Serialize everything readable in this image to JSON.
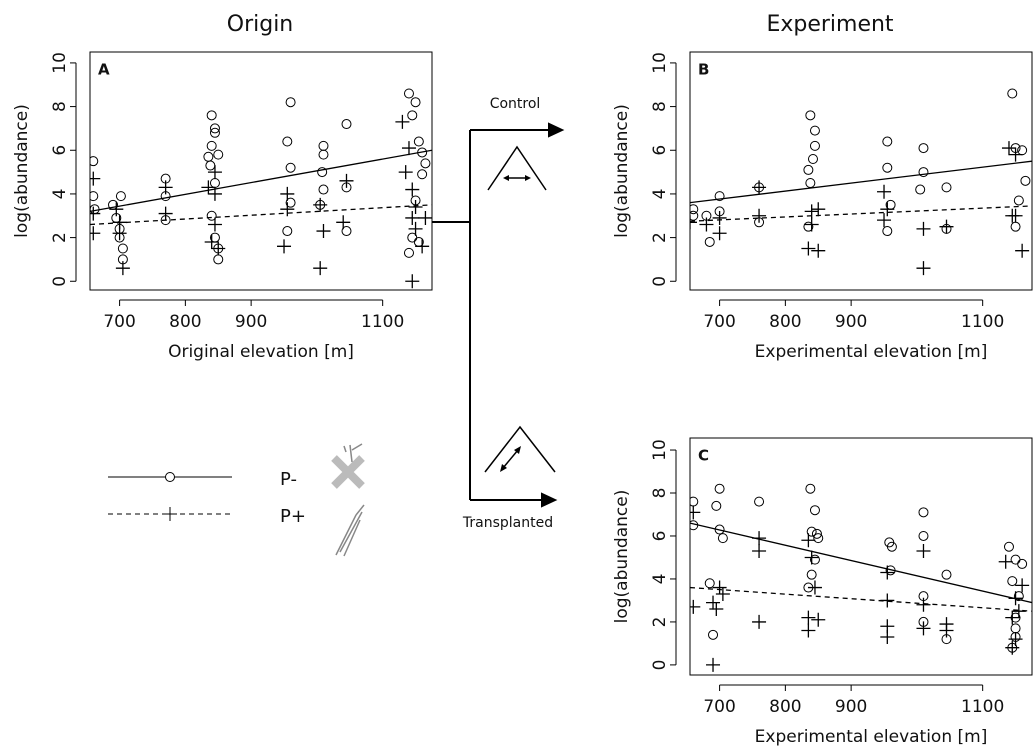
{
  "chart_data": [
    {
      "type": "scatter",
      "title": "Origin",
      "label": "A",
      "x_label": "Original elevation [m]",
      "y_label": "log(abundance)",
      "xlim": [
        655,
        1175
      ],
      "ylim": [
        -0.4,
        10.5
      ],
      "xticks": [
        700,
        800,
        900,
        1100
      ],
      "yticks": [
        0,
        2,
        4,
        6,
        8,
        10
      ],
      "series": [
        {
          "name": "P-",
          "color": "#000000",
          "marker": "circle",
          "dash": "solid",
          "x": [
            660,
            660,
            662,
            690,
            695,
            700,
            702,
            705,
            705,
            700,
            770,
            770,
            770,
            840,
            845,
            845,
            840,
            835,
            838,
            850,
            845,
            840,
            845,
            850,
            850,
            960,
            955,
            960,
            960,
            955,
            1010,
            1010,
            1008,
            1010,
            1005,
            1045,
            1045,
            1045,
            1140,
            1150,
            1145,
            1155,
            1160,
            1165,
            1160,
            1150,
            1145,
            1140,
            1155
          ],
          "values": [
            5.5,
            3.9,
            3.3,
            3.5,
            2.9,
            2.4,
            3.9,
            1.5,
            1.0,
            2.0,
            4.7,
            2.8,
            3.9,
            7.6,
            7.0,
            6.8,
            6.2,
            5.7,
            5.3,
            5.8,
            4.5,
            3.0,
            2.0,
            1.5,
            1.0,
            8.2,
            6.4,
            5.2,
            3.6,
            2.3,
            6.2,
            5.8,
            5.0,
            4.2,
            3.5,
            7.2,
            4.3,
            2.3,
            8.6,
            8.2,
            7.6,
            6.4,
            5.9,
            5.4,
            4.9,
            3.7,
            2.0,
            1.3,
            1.8
          ],
          "fit_x": [
            655,
            1175
          ],
          "fit_values": [
            3.2,
            6.0
          ]
        },
        {
          "name": "P+",
          "color": "#000000",
          "marker": "plus",
          "dash": "dashed",
          "x": [
            660,
            660,
            660,
            700,
            705,
            700,
            695,
            770,
            770,
            835,
            845,
            845,
            840,
            850,
            845,
            955,
            955,
            950,
            1005,
            1010,
            1005,
            1045,
            1040,
            1130,
            1140,
            1135,
            1145,
            1150,
            1145,
            1150,
            1145,
            1160,
            1165
          ],
          "values": [
            4.7,
            3.1,
            2.2,
            2.7,
            0.6,
            2.2,
            3.3,
            4.3,
            3.1,
            4.3,
            4.0,
            2.6,
            1.8,
            1.5,
            5.0,
            4.0,
            3.3,
            1.6,
            3.5,
            2.3,
            0.6,
            4.6,
            2.7,
            7.3,
            6.1,
            5.0,
            4.2,
            3.4,
            2.9,
            2.4,
            0.0,
            1.6,
            2.9
          ],
          "fit_x": [
            655,
            1175
          ],
          "fit_values": [
            2.6,
            3.5
          ]
        }
      ]
    },
    {
      "type": "scatter",
      "title": "Experiment",
      "label": "B",
      "x_label": "Experimental elevation  [m]",
      "y_label": "log(abundance)",
      "xlim": [
        655,
        1175
      ],
      "ylim": [
        -0.4,
        10.5
      ],
      "xticks": [
        700,
        800,
        900,
        1100
      ],
      "yticks": [
        0,
        2,
        4,
        6,
        8,
        10
      ],
      "series": [
        {
          "color": "#000000",
          "marker": "circle",
          "dash": "solid",
          "x": [
            660,
            660,
            680,
            685,
            700,
            700,
            760,
            760,
            838,
            845,
            845,
            842,
            835,
            838,
            835,
            955,
            955,
            960,
            955,
            1010,
            1010,
            1005,
            1045,
            1045,
            1145,
            1150,
            1160,
            1165,
            1155,
            1150
          ],
          "values": [
            3.3,
            3.0,
            3.0,
            1.8,
            3.9,
            3.2,
            4.3,
            2.7,
            7.6,
            6.9,
            6.2,
            5.6,
            5.1,
            4.5,
            2.5,
            6.4,
            5.2,
            3.5,
            2.3,
            6.1,
            5.0,
            4.2,
            4.3,
            2.4,
            8.6,
            6.1,
            6.0,
            4.6,
            3.7,
            2.5
          ],
          "fit_x": [
            655,
            1175
          ],
          "fit_values": [
            3.6,
            5.5
          ]
        },
        {
          "color": "#000000",
          "marker": "plus",
          "dash": "dashed",
          "x": [
            655,
            680,
            700,
            700,
            760,
            760,
            840,
            840,
            835,
            850,
            850,
            950,
            955,
            950,
            1010,
            1010,
            1045,
            1140,
            1150,
            1145,
            1160,
            1150
          ],
          "values": [
            2.7,
            2.6,
            2.9,
            2.2,
            4.3,
            3.0,
            3.2,
            2.6,
            1.5,
            1.4,
            3.3,
            4.1,
            3.3,
            2.8,
            2.4,
            0.6,
            2.5,
            6.1,
            5.8,
            3.0,
            1.4,
            3.0
          ],
          "fit_x": [
            655,
            1175
          ],
          "fit_values": [
            2.75,
            3.45
          ]
        }
      ]
    },
    {
      "type": "scatter",
      "label": "C",
      "x_label": "Experimental elevation [m]",
      "y_label": "log(abundance)",
      "xlim": [
        655,
        1175
      ],
      "ylim": [
        -0.47,
        10.56
      ],
      "xticks": [
        700,
        800,
        900,
        1100
      ],
      "yticks": [
        0,
        2,
        4,
        6,
        8,
        10
      ],
      "series": [
        {
          "color": "#000000",
          "marker": "circle",
          "dash": "solid",
          "x": [
            660,
            660,
            700,
            695,
            700,
            705,
            685,
            690,
            760,
            838,
            845,
            840,
            848,
            850,
            845,
            840,
            835,
            958,
            962,
            960,
            1010,
            1010,
            1010,
            1010,
            1045,
            1045,
            1140,
            1150,
            1160,
            1145,
            1155,
            1150,
            1150,
            1150,
            1145
          ],
          "values": [
            7.6,
            6.5,
            8.2,
            7.4,
            6.3,
            5.9,
            3.8,
            1.4,
            7.6,
            8.2,
            7.2,
            6.2,
            6.1,
            5.9,
            4.9,
            4.2,
            3.6,
            5.7,
            5.5,
            4.4,
            7.1,
            6.0,
            3.2,
            2.0,
            4.2,
            1.2,
            5.5,
            4.9,
            4.7,
            3.9,
            3.2,
            2.2,
            1.7,
            1.3,
            0.8
          ],
          "fit_x": [
            655,
            1175
          ],
          "fit_values": [
            6.6,
            2.9
          ]
        },
        {
          "color": "#000000",
          "marker": "plus",
          "dash": "dashed",
          "x": [
            660,
            660,
            690,
            700,
            705,
            695,
            690,
            760,
            760,
            760,
            835,
            840,
            845,
            835,
            835,
            850,
            955,
            955,
            955,
            955,
            1010,
            1010,
            1010,
            1045,
            1045,
            1135,
            1145,
            1150,
            1155,
            1160,
            1150,
            1145
          ],
          "values": [
            7.1,
            2.7,
            2.9,
            3.6,
            3.3,
            2.6,
            0.0,
            5.9,
            5.3,
            2.0,
            5.8,
            5.0,
            3.6,
            2.2,
            1.6,
            2.1,
            4.3,
            3.0,
            1.8,
            1.3,
            5.3,
            2.8,
            1.7,
            1.9,
            1.6,
            4.8,
            2.2,
            3.1,
            2.5,
            3.7,
            1.2,
            0.8
          ],
          "fit_x": [
            655,
            1175
          ],
          "fit_values": [
            3.6,
            2.5
          ]
        }
      ]
    }
  ],
  "diagram": {
    "control": "Control",
    "transplanted": "Transplanted"
  }
}
